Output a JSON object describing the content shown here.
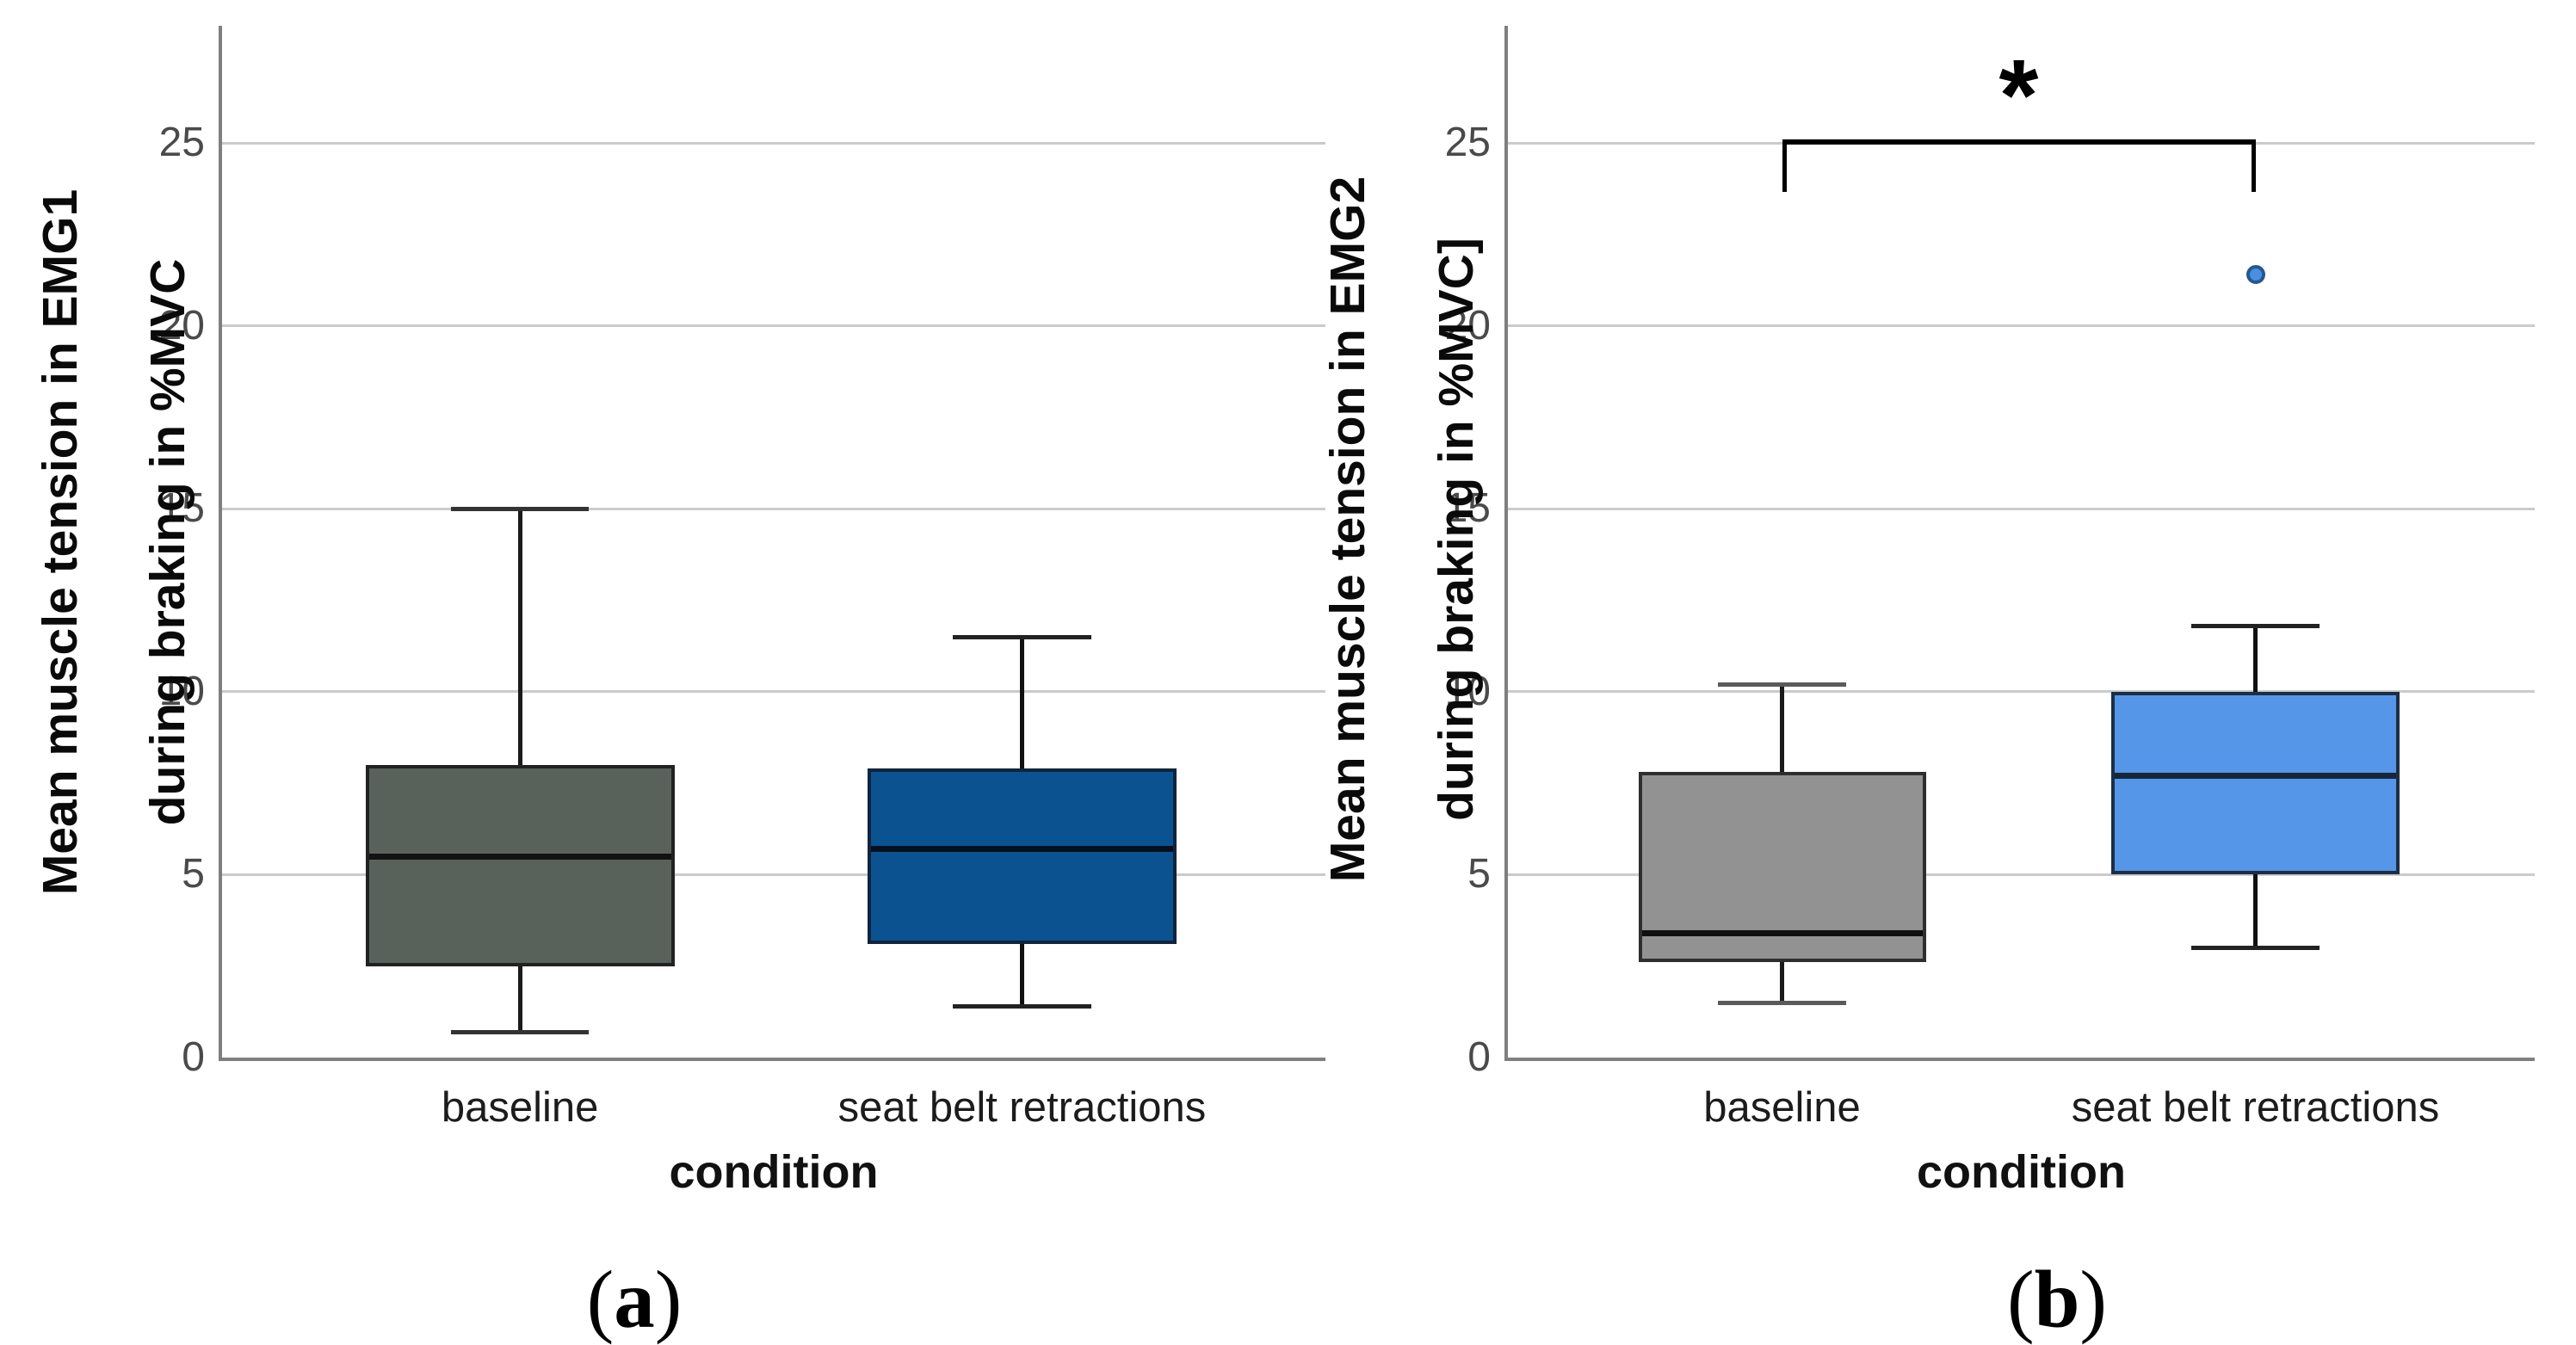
{
  "colors": {
    "axis": "#7f7f7f",
    "gridline": "#cbcbcb",
    "tick_label": "#4a4a4a",
    "text": "#111111"
  },
  "chart_data": [
    {
      "type": "box",
      "panel": "a",
      "ylabel_lines": [
        "Mean muscle tension in EMG1",
        "during braking in %MVC"
      ],
      "xlabel": "condition",
      "caption": {
        "open": "(",
        "letter": "a",
        "close": ")"
      },
      "categories": [
        "baseline",
        "seat belt retractions"
      ],
      "yticks": [
        0,
        5,
        10,
        15,
        20,
        25
      ],
      "ylim": [
        0,
        28.2
      ],
      "grid": true,
      "legend": "none",
      "boxes": [
        {
          "category": "baseline",
          "whisker_low": 0.7,
          "q1": 2.5,
          "median": 5.5,
          "q3": 8.0,
          "whisker_high": 15.0,
          "fill": "#59615B",
          "border": "#222222",
          "median_color": "#121212",
          "whisker_color": "#1a1a1a",
          "cap_color": "#333333"
        },
        {
          "category": "seat belt retractions",
          "whisker_low": 1.4,
          "q1": 3.1,
          "median": 5.7,
          "q3": 7.9,
          "whisker_high": 11.5,
          "fill": "#0B5291",
          "border": "#10243c",
          "median_color": "#04101f",
          "whisker_color": "#111111",
          "cap_color": "#222222"
        }
      ],
      "outliers": [],
      "significance": null
    },
    {
      "type": "box",
      "panel": "b",
      "ylabel_lines": [
        "Mean muscle tension in EMG2",
        "during braking in %MVC]"
      ],
      "xlabel": "condition",
      "caption": {
        "open": "(",
        "letter": "b",
        "close": ")"
      },
      "categories": [
        "baseline",
        "seat belt retractions"
      ],
      "yticks": [
        0,
        5,
        10,
        15,
        20,
        25
      ],
      "ylim": [
        0,
        28.2
      ],
      "grid": true,
      "legend": "none",
      "boxes": [
        {
          "category": "baseline",
          "whisker_low": 1.5,
          "q1": 2.6,
          "median": 3.4,
          "q3": 7.8,
          "whisker_high": 10.2,
          "fill": "#929292",
          "border": "#2e2e2e",
          "median_color": "#0f0f0f",
          "whisker_color": "#1a1a1a",
          "cap_color": "#5a5a5a"
        },
        {
          "category": "seat belt retractions",
          "whisker_low": 3.0,
          "q1": 5.0,
          "median": 7.7,
          "q3": 10.0,
          "whisker_high": 11.8,
          "fill": "#5596E8",
          "border": "#1c2e45",
          "median_color": "#16273a",
          "whisker_color": "#111111",
          "cap_color": "#222222"
        }
      ],
      "outliers": [
        {
          "category": "seat belt retractions",
          "value": 21.4,
          "fill": "#4A8FE0",
          "border": "#24588F"
        }
      ],
      "significance": {
        "label": "*",
        "from": "baseline",
        "to": "seat belt retractions",
        "bar_y": 25.1,
        "leg_drop": 1.45
      }
    }
  ]
}
